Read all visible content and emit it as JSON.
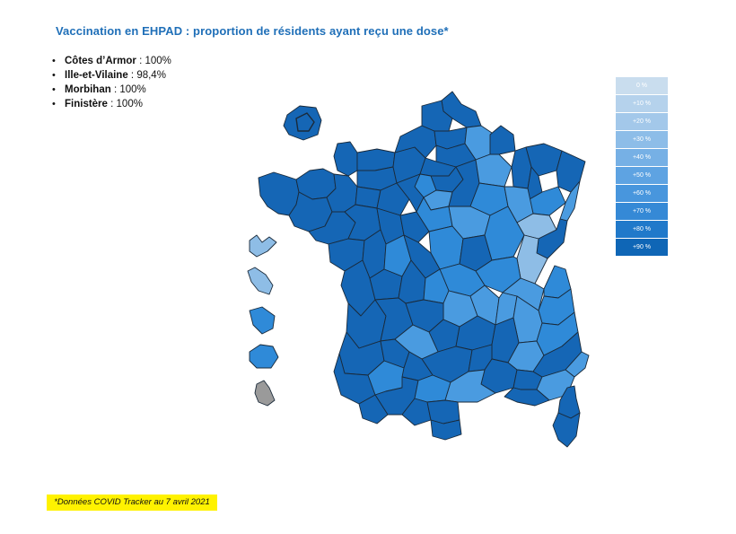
{
  "title": "Vaccination en EHPAD : proportion de résidents ayant reçu une dose*",
  "highlights": [
    {
      "name": "Côtes d’Armor",
      "value": " : 100%"
    },
    {
      "name": "Ille-et-Vilaine",
      "value": " : 98,4%"
    },
    {
      "name": "Morbihan",
      "value": " : 100%"
    },
    {
      "name": "Finistère",
      "value": " : 100%"
    }
  ],
  "legend": [
    {
      "label": "0 %",
      "color": "#C9DDEE"
    },
    {
      "label": "+10 %",
      "color": "#B5D2EC"
    },
    {
      "label": "+20 %",
      "color": "#A3C8EA"
    },
    {
      "label": "+30 %",
      "color": "#8DBDE8"
    },
    {
      "label": "+40 %",
      "color": "#76B0E5"
    },
    {
      "label": "+50 %",
      "color": "#5EA3E2"
    },
    {
      "label": "+60 %",
      "color": "#4896DD"
    },
    {
      "label": "+70 %",
      "color": "#3589D6"
    },
    {
      "label": "+80 %",
      "color": "#2079CA"
    },
    {
      "label": "+90 %",
      "color": "#0F66B6"
    }
  ],
  "footnote": "*Données COVID Tracker au 7 avril 2021",
  "colors": {
    "title": "#1F6FB8",
    "dark": "#1566B5",
    "medium": "#2F8AD8",
    "light": "#4A9BE0",
    "pale": "#8EBDE6",
    "no_data": "#9A9A9A"
  }
}
